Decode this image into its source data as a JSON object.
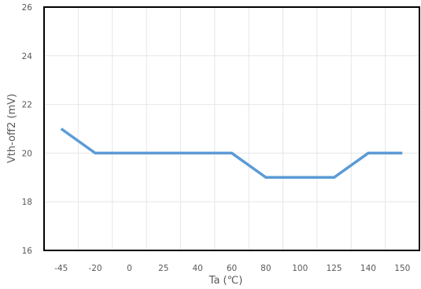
{
  "chart_data": {
    "type": "line",
    "xlabel": "Ta (℃)",
    "ylabel": "Vth-off2 (mV)",
    "categories": [
      "-45",
      "-20",
      "0",
      "25",
      "40",
      "60",
      "80",
      "100",
      "125",
      "140",
      "150"
    ],
    "series": [
      {
        "values": [
          21,
          20,
          20,
          20,
          20,
          20,
          19,
          19,
          19,
          20,
          20
        ],
        "color": "#5b9bd5"
      }
    ],
    "ylim": [
      16,
      26
    ],
    "yticks": [
      "16",
      "18",
      "20",
      "22",
      "24",
      "26"
    ],
    "grid": true,
    "legend": "none"
  }
}
